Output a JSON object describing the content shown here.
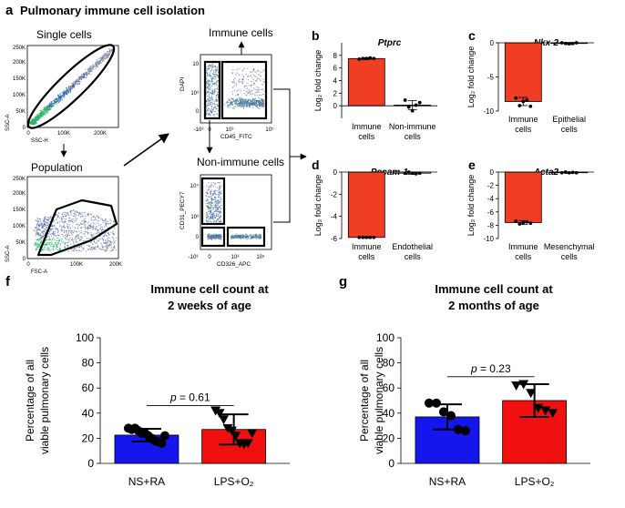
{
  "panel_a": {
    "letter": "a",
    "title": "Pulmonary immune cell isolation",
    "single_cells": {
      "title": "Single cells",
      "xlabel": "SSC-H",
      "ylabel": "SSC-A",
      "xticks": [
        "0",
        "100K",
        "200K"
      ],
      "yticks": [
        "0",
        "50K",
        "100K",
        "150K",
        "200K",
        "250K"
      ]
    },
    "population": {
      "title": "Population",
      "xlabel": "FSC-A",
      "ylabel": "SSC-A",
      "xticks": [
        "0",
        "100K",
        "200K"
      ],
      "yticks": [
        "0",
        "50K",
        "100K",
        "150K",
        "200K",
        "250K"
      ]
    },
    "immune_gate": {
      "title": "Immune cells",
      "xlabel": "CD45_FITC",
      "ylabel": "DAPI",
      "xticks": [
        "-10³",
        "0",
        "10³",
        "10⁵"
      ],
      "yticks": [
        "10",
        "10³",
        "0"
      ]
    },
    "nonimmune_gate": {
      "title": "Non-immune cells",
      "xlabel": "CD326_APC",
      "ylabel": "CD31_PECY7",
      "xticks": [
        "-10³",
        "0",
        "10³",
        "10⁴"
      ],
      "yticks": [
        "10⁴",
        "10³",
        "0"
      ]
    }
  },
  "chart_data": [
    {
      "panel": "b",
      "type": "bar",
      "title": "Ptprc",
      "ylabel": "Log₂ fold change",
      "categories": [
        [
          "Immune",
          "cells"
        ],
        [
          "Non-immune",
          "cells"
        ]
      ],
      "values": [
        7.5,
        0.1
      ],
      "errors": [
        0.15,
        0.7
      ],
      "colors": [
        "#f03e24",
        "#ffffff"
      ],
      "points": [
        [
          7.4,
          7.5,
          7.5,
          7.6,
          7.5
        ],
        [
          0.9,
          -0.2,
          -0.8,
          0.1,
          0.5
        ]
      ],
      "ylim": [
        -2,
        10
      ],
      "yticks": [
        0,
        2,
        4,
        6,
        8
      ],
      "ytick_labels": [
        "0",
        "2",
        "4",
        "6",
        "8"
      ]
    },
    {
      "panel": "c",
      "type": "bar",
      "title": "Nkx-2",
      "ylabel": "Log₂ fold change",
      "categories": [
        [
          "Immune",
          "cells"
        ],
        [
          "Epithelial",
          "cells"
        ]
      ],
      "values": [
        -8.6,
        -0.1
      ],
      "errors": [
        0.6,
        0.15
      ],
      "colors": [
        "#f03e24",
        "#ffffff"
      ],
      "points": [
        [
          -8.1,
          -9.2,
          -8.6,
          -8.4,
          -9.3
        ],
        [
          0,
          -0.1,
          -0.15,
          -0.1,
          0
        ]
      ],
      "ylim": [
        -10,
        0
      ],
      "yticks": [
        0,
        -5,
        -10
      ],
      "ytick_labels": [
        "0",
        "-5",
        "-10"
      ]
    },
    {
      "panel": "d",
      "type": "bar",
      "title": "Pecam-1",
      "ylabel": "Log₂ fold change",
      "categories": [
        [
          "Immune",
          "cells"
        ],
        [
          "Endothelial",
          "cells"
        ]
      ],
      "values": [
        -5.9,
        -0.1
      ],
      "errors": [
        0.05,
        0.1
      ],
      "colors": [
        "#f03e24",
        "#ffffff"
      ],
      "points": [
        [
          -5.9,
          -5.9,
          -5.9,
          -5.9,
          -5.9
        ],
        [
          -0.1,
          0,
          -0.1,
          -0.15,
          -0.1
        ]
      ],
      "ylim": [
        -6,
        0
      ],
      "yticks": [
        0,
        -2,
        -4,
        -6
      ],
      "ytick_labels": [
        "0",
        "-2",
        "-4",
        "-6"
      ]
    },
    {
      "panel": "e",
      "type": "bar",
      "title": "Acta2",
      "ylabel": "Log₂ fold change",
      "categories": [
        [
          "Immune",
          "cells"
        ],
        [
          "Mesenchymal",
          "cells"
        ]
      ],
      "values": [
        -7.6,
        -0.1
      ],
      "errors": [
        0.3,
        0.1
      ],
      "colors": [
        "#f03e24",
        "#ffffff"
      ],
      "points": [
        [
          -7.4,
          -7.8,
          -7.6,
          -7.5,
          -7.7
        ],
        [
          -0.1,
          0,
          -0.1,
          -0.05,
          -0.1
        ]
      ],
      "ylim": [
        -10,
        0
      ],
      "yticks": [
        0,
        -2,
        -4,
        -6,
        -8,
        -10
      ],
      "ytick_labels": [
        "0",
        "-2",
        "-4",
        "-6",
        "-8",
        "-10"
      ]
    },
    {
      "panel": "f",
      "type": "bar",
      "title": [
        "Immune cell count at",
        "2 weeks of age"
      ],
      "ylabel": [
        "Percentage of all",
        "viable pulmonary cells"
      ],
      "categories": [
        "NS+RA",
        "LPS+O₂"
      ],
      "values": [
        22.5,
        27
      ],
      "errors": [
        5,
        12
      ],
      "colors": [
        "#1515ee",
        "#f01010"
      ],
      "markers": [
        "circle",
        "triangle"
      ],
      "points": [
        [
          28,
          27,
          28,
          26,
          24,
          24,
          22,
          20,
          18,
          17,
          16,
          22
        ],
        [
          42,
          40,
          35,
          28,
          26,
          22,
          16,
          15,
          16,
          24
        ]
      ],
      "ylim": [
        0,
        100
      ],
      "yticks": [
        0,
        20,
        40,
        60,
        80,
        100
      ],
      "annotation": {
        "prefix": "p",
        "text": " = 0.61"
      }
    },
    {
      "panel": "g",
      "type": "bar",
      "title": [
        "Immune cell count at",
        "2 months of age"
      ],
      "ylabel": [
        "Percentage of all",
        "viable pulmonary cells"
      ],
      "categories": [
        "NS+RA",
        "LPS+O₂"
      ],
      "values": [
        37,
        50
      ],
      "errors": [
        10,
        13
      ],
      "colors": [
        "#1515ee",
        "#f01010"
      ],
      "markers": [
        "circle",
        "triangle"
      ],
      "points": [
        [
          48,
          48,
          41,
          38,
          27,
          26
        ],
        [
          62,
          63,
          56,
          44,
          42,
          40
        ]
      ],
      "ylim": [
        0,
        100
      ],
      "yticks": [
        0,
        20,
        40,
        60,
        80,
        100
      ],
      "annotation": {
        "prefix": "p",
        "text": " = 0.23"
      }
    }
  ]
}
